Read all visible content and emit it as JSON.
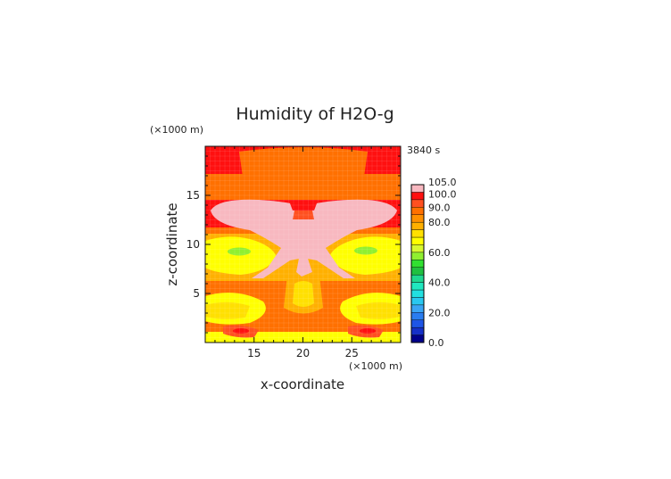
{
  "chart_data": {
    "type": "heatmap",
    "title": "Humidity of H2O-g",
    "xlabel": "x-coordinate",
    "ylabel": "z-coordinate",
    "x_unit": "(×1000 m)",
    "y_unit": "(×1000 m)",
    "time_label": "3840 s",
    "xlim": [
      10,
      30
    ],
    "ylim": [
      0,
      20
    ],
    "x_ticks": [
      15,
      20,
      25
    ],
    "y_ticks": [
      5,
      10,
      15
    ],
    "colorbar": {
      "levels": [
        0,
        5,
        10,
        15,
        20,
        25,
        30,
        35,
        40,
        45,
        50,
        55,
        60,
        65,
        70,
        75,
        80,
        85,
        90,
        95,
        100,
        105
      ],
      "colors": [
        "#00008b",
        "#1530c8",
        "#1e55e6",
        "#2a7df0",
        "#3aa5f5",
        "#29c8f0",
        "#22e0e0",
        "#20e8c0",
        "#20d890",
        "#20c040",
        "#30e030",
        "#90ef30",
        "#d8f830",
        "#ffff00",
        "#ffe000",
        "#ffb000",
        "#ff9000",
        "#ff7000",
        "#ff5020",
        "#ff1010",
        "#f8b8c0"
      ],
      "tick_labels": [
        "0.0",
        "20.0",
        "40.0",
        "60.0",
        "80.0",
        "90.0",
        "100.0",
        "105.0"
      ],
      "tick_values": [
        0,
        20,
        40,
        60,
        80,
        90,
        100,
        105
      ]
    }
  }
}
